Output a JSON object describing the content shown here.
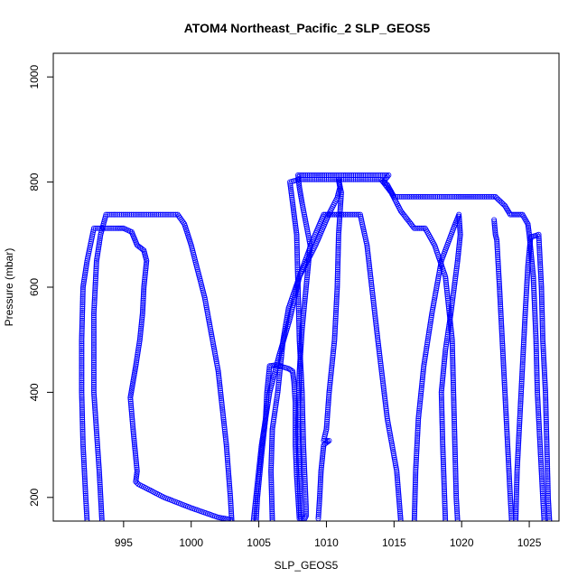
{
  "chart_data": {
    "type": "scatter",
    "title": "ATOM4 Northeast_Pacific_2 SLP_GEOS5",
    "xlabel": "SLP_GEOS5",
    "ylabel": "Pressure (mbar)",
    "xlim": [
      989.8,
      1027.2
    ],
    "ylim": [
      1045,
      155
    ],
    "y_reversed": true,
    "x_ticks": [
      995,
      1000,
      1005,
      1010,
      1015,
      1020,
      1025
    ],
    "y_ticks": [
      200,
      400,
      600,
      800,
      1000
    ],
    "marker": "open-circle",
    "color": "#0000ff",
    "series": [
      {
        "values": [
          [
            992.3,
            155
          ],
          [
            992.2,
            200
          ],
          [
            992.0,
            300
          ],
          [
            991.9,
            400
          ],
          [
            991.9,
            500
          ],
          [
            992.0,
            600
          ],
          [
            992.3,
            650
          ],
          [
            992.8,
            712
          ],
          [
            994.5,
            712
          ],
          [
            995.0,
            712
          ],
          [
            995.6,
            705
          ],
          [
            996.0,
            680
          ],
          [
            996.5,
            670
          ],
          [
            996.7,
            650
          ],
          [
            996.5,
            600
          ],
          [
            996.4,
            550
          ],
          [
            996.2,
            500
          ],
          [
            995.9,
            450
          ],
          [
            995.7,
            420
          ],
          [
            995.5,
            390
          ],
          [
            995.7,
            330
          ],
          [
            996.0,
            250
          ],
          [
            995.9,
            230
          ],
          [
            996.1,
            225
          ],
          [
            998.0,
            200
          ],
          [
            1000.0,
            180
          ],
          [
            1002.0,
            162
          ],
          [
            1002.9,
            158
          ]
        ]
      },
      {
        "values": [
          [
            993.4,
            155
          ],
          [
            993.2,
            250
          ],
          [
            992.8,
            400
          ],
          [
            992.8,
            550
          ],
          [
            993.0,
            650
          ],
          [
            993.3,
            700
          ],
          [
            993.7,
            738
          ],
          [
            995.0,
            738
          ],
          [
            997.0,
            738
          ],
          [
            999.0,
            738
          ],
          [
            999.5,
            720
          ],
          [
            1000.0,
            680
          ],
          [
            1001.0,
            580
          ],
          [
            1002.0,
            440
          ],
          [
            1002.6,
            300
          ],
          [
            1002.9,
            200
          ],
          [
            1003.0,
            155
          ]
        ]
      },
      {
        "values": [
          [
            1004.8,
            155
          ],
          [
            1004.9,
            200
          ],
          [
            1005.2,
            280
          ],
          [
            1005.5,
            350
          ],
          [
            1005.6,
            400
          ],
          [
            1005.8,
            450
          ],
          [
            1006.3,
            452
          ],
          [
            1006.8,
            448
          ],
          [
            1007.2,
            445
          ],
          [
            1007.5,
            440
          ],
          [
            1007.6,
            420
          ],
          [
            1007.7,
            380
          ],
          [
            1007.7,
            300
          ],
          [
            1007.8,
            240
          ],
          [
            1007.9,
            200
          ],
          [
            1008.0,
            160
          ],
          [
            1008.4,
            160
          ],
          [
            1008.5,
            165
          ],
          [
            1008.5,
            180
          ],
          [
            1008.3,
            300
          ],
          [
            1008.2,
            400
          ],
          [
            1008.0,
            500
          ],
          [
            1007.9,
            600
          ],
          [
            1007.8,
            700
          ],
          [
            1007.5,
            760
          ],
          [
            1007.3,
            800
          ],
          [
            1008.0,
            805
          ],
          [
            1010.0,
            805
          ],
          [
            1012.0,
            805
          ],
          [
            1014.0,
            805
          ],
          [
            1014.5,
            795
          ],
          [
            1015.0,
            772
          ],
          [
            1016.0,
            772
          ],
          [
            1017.5,
            772
          ],
          [
            1019.5,
            772
          ],
          [
            1021.0,
            772
          ],
          [
            1022.5,
            772
          ],
          [
            1023.2,
            755
          ],
          [
            1023.6,
            738
          ],
          [
            1024.5,
            738
          ],
          [
            1024.9,
            720
          ],
          [
            1025.0,
            700
          ],
          [
            1025.3,
            620
          ],
          [
            1025.5,
            500
          ],
          [
            1025.6,
            400
          ],
          [
            1025.8,
            300
          ],
          [
            1026.0,
            200
          ],
          [
            1026.1,
            155
          ]
        ]
      },
      {
        "values": [
          [
            1006.0,
            155
          ],
          [
            1005.9,
            250
          ],
          [
            1006.0,
            330
          ],
          [
            1006.4,
            400
          ],
          [
            1006.8,
            500
          ],
          [
            1007.2,
            560
          ],
          [
            1008.0,
            620
          ],
          [
            1009.0,
            690
          ],
          [
            1009.8,
            738
          ],
          [
            1011.0,
            738
          ],
          [
            1012.5,
            738
          ],
          [
            1013.0,
            680
          ],
          [
            1013.8,
            500
          ],
          [
            1014.5,
            350
          ],
          [
            1015.2,
            250
          ],
          [
            1015.5,
            155
          ]
        ]
      },
      {
        "values": [
          [
            1004.6,
            155
          ],
          [
            1005.2,
            300
          ],
          [
            1005.8,
            400
          ],
          [
            1006.5,
            470
          ],
          [
            1007.3,
            540
          ],
          [
            1008.0,
            620
          ],
          [
            1009.2,
            680
          ],
          [
            1010.2,
            740
          ],
          [
            1010.8,
            770
          ],
          [
            1011.0,
            790
          ],
          [
            1010.9,
            805
          ],
          [
            1011.1,
            780
          ],
          [
            1010.9,
            700
          ],
          [
            1010.8,
            600
          ],
          [
            1010.6,
            500
          ],
          [
            1010.2,
            400
          ],
          [
            1010.0,
            330
          ],
          [
            1009.8,
            308
          ],
          [
            1010.2,
            308
          ],
          [
            1009.8,
            300
          ],
          [
            1009.6,
            250
          ],
          [
            1009.5,
            200
          ],
          [
            1009.4,
            160
          ]
        ]
      },
      {
        "values": [
          [
            1008.1,
            160
          ],
          [
            1008.0,
            240
          ],
          [
            1007.9,
            330
          ],
          [
            1008.0,
            440
          ],
          [
            1008.2,
            520
          ],
          [
            1008.5,
            600
          ],
          [
            1008.8,
            680
          ],
          [
            1008.5,
            720
          ],
          [
            1008.2,
            760
          ],
          [
            1008.0,
            790
          ],
          [
            1007.9,
            813
          ],
          [
            1010.0,
            813
          ],
          [
            1012.0,
            813
          ],
          [
            1014.6,
            813
          ],
          [
            1014.2,
            800
          ],
          [
            1014.8,
            780
          ],
          [
            1015.5,
            745
          ],
          [
            1016.5,
            712
          ],
          [
            1017.3,
            712
          ],
          [
            1018.0,
            680
          ],
          [
            1018.8,
            620
          ],
          [
            1019.3,
            500
          ],
          [
            1019.4,
            400
          ],
          [
            1019.5,
            300
          ],
          [
            1019.6,
            200
          ],
          [
            1019.7,
            155
          ]
        ]
      },
      {
        "values": [
          [
            1016.5,
            155
          ],
          [
            1016.6,
            250
          ],
          [
            1016.8,
            350
          ],
          [
            1017.2,
            450
          ],
          [
            1017.8,
            550
          ],
          [
            1018.5,
            650
          ],
          [
            1019.4,
            712
          ],
          [
            1019.8,
            738
          ],
          [
            1019.9,
            700
          ],
          [
            1019.7,
            650
          ],
          [
            1019.2,
            550
          ],
          [
            1018.8,
            480
          ],
          [
            1018.5,
            400
          ],
          [
            1018.6,
            300
          ],
          [
            1018.8,
            155
          ]
        ]
      },
      {
        "values": [
          [
            1022.4,
            728
          ],
          [
            1022.5,
            700
          ],
          [
            1022.6,
            690
          ],
          [
            1022.8,
            600
          ],
          [
            1023.0,
            500
          ],
          [
            1023.2,
            400
          ],
          [
            1023.4,
            300
          ],
          [
            1023.6,
            200
          ],
          [
            1023.7,
            155
          ]
        ]
      },
      {
        "values": [
          [
            1024.0,
            155
          ],
          [
            1024.1,
            250
          ],
          [
            1024.3,
            350
          ],
          [
            1024.5,
            450
          ],
          [
            1024.7,
            550
          ],
          [
            1024.9,
            640
          ],
          [
            1025.1,
            695
          ],
          [
            1025.7,
            700
          ],
          [
            1025.9,
            600
          ],
          [
            1026.0,
            500
          ],
          [
            1026.2,
            400
          ],
          [
            1026.3,
            300
          ],
          [
            1026.4,
            200
          ],
          [
            1026.5,
            155
          ]
        ]
      }
    ]
  }
}
